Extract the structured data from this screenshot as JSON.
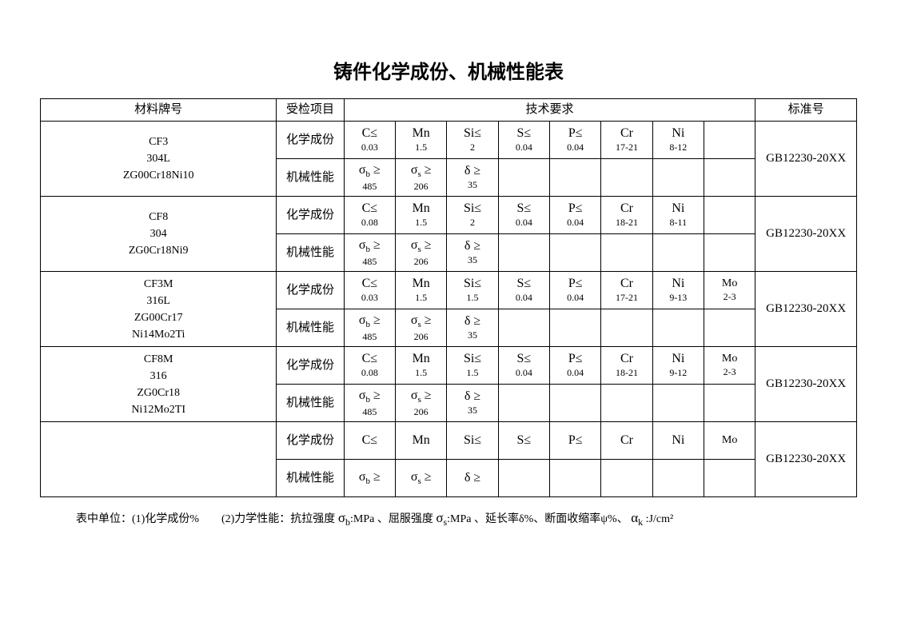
{
  "title": "铸件化学成份、机械性能表",
  "headers": {
    "material": "材料牌号",
    "test_item": "受检项目",
    "tech_req": "技术要求",
    "standard": "标准号"
  },
  "test_labels": {
    "chem": "化学成份",
    "mech": "机械性能"
  },
  "chem_labels": {
    "c": "C≤",
    "mn": "Mn",
    "si": "Si≤",
    "s": "S≤",
    "p": "P≤",
    "cr": "Cr",
    "ni": "Ni",
    "mo": "Mo"
  },
  "mech_labels": {
    "sigma_b": {
      "sym": "σ",
      "sub": "b",
      "op": " ≥"
    },
    "sigma_s": {
      "sym": "σ",
      "sub": "s",
      "op": " ≥"
    },
    "delta": {
      "sym": "δ",
      "op": " ≥"
    }
  },
  "rows": [
    {
      "material": {
        "l1": "CF3",
        "l2": "304L",
        "l3": "ZG00Cr18Ni10",
        "l4": ""
      },
      "chem": {
        "c": "0.03",
        "mn": "1.5",
        "si": "2",
        "s": "0.04",
        "p": "0.04",
        "cr": "17-21",
        "ni": "8-12",
        "mo": ""
      },
      "mech": {
        "sb": "485",
        "ss": "206",
        "d": "35"
      },
      "std": "GB12230-20XX"
    },
    {
      "material": {
        "l1": "CF8",
        "l2": "304",
        "l3": "ZG0Cr18Ni9",
        "l4": ""
      },
      "chem": {
        "c": "0.08",
        "mn": "1.5",
        "si": "2",
        "s": "0.04",
        "p": "0.04",
        "cr": "18-21",
        "ni": "8-11",
        "mo": ""
      },
      "mech": {
        "sb": "485",
        "ss": "206",
        "d": "35"
      },
      "std": "GB12230-20XX"
    },
    {
      "material": {
        "l1": "CF3M",
        "l2": "316L",
        "l3": "ZG00Cr17",
        "l4": "Ni14Mo2Ti"
      },
      "chem": {
        "c": "0.03",
        "mn": "1.5",
        "si": "1.5",
        "s": "0.04",
        "p": "0.04",
        "cr": "17-21",
        "ni": "9-13",
        "mo": "2-3"
      },
      "mech": {
        "sb": "485",
        "ss": "206",
        "d": "35"
      },
      "std": "GB12230-20XX"
    },
    {
      "material": {
        "l1": "CF8M",
        "l2": "316",
        "l3": "ZG0Cr18",
        "l4": "Ni12Mo2TI"
      },
      "chem": {
        "c": "0.08",
        "mn": "1.5",
        "si": "1.5",
        "s": "0.04",
        "p": "0.04",
        "cr": "18-21",
        "ni": "9-12",
        "mo": "2-3"
      },
      "mech": {
        "sb": "485",
        "ss": "206",
        "d": "35"
      },
      "std": "GB12230-20XX"
    },
    {
      "material": {
        "l1": "",
        "l2": "",
        "l3": "",
        "l4": ""
      },
      "chem": {
        "c": "",
        "mn": "",
        "si": "",
        "s": "",
        "p": "",
        "cr": "",
        "ni": "",
        "mo": ""
      },
      "mech": {
        "sb": "",
        "ss": "",
        "d": ""
      },
      "std": "GB12230-20XX"
    }
  ],
  "footnote": {
    "p1": "表中单位：(1)化学成份%　　(2)力学性能：抗拉强度 ",
    "sb_s": "σ",
    "sb_sub": "b",
    "sb_t": ":MPa 、屈服强度 ",
    "ss_s": "σ",
    "ss_sub": "s",
    "ss_t": ":MPa 、延长率δ%、断面收缩率ψ%、 ",
    "ak_s": "α",
    "ak_sub": "k",
    "ak_t": " :J/cm²"
  },
  "col_widths": {
    "material": "280",
    "test": "80",
    "val": "61",
    "std": "120"
  }
}
